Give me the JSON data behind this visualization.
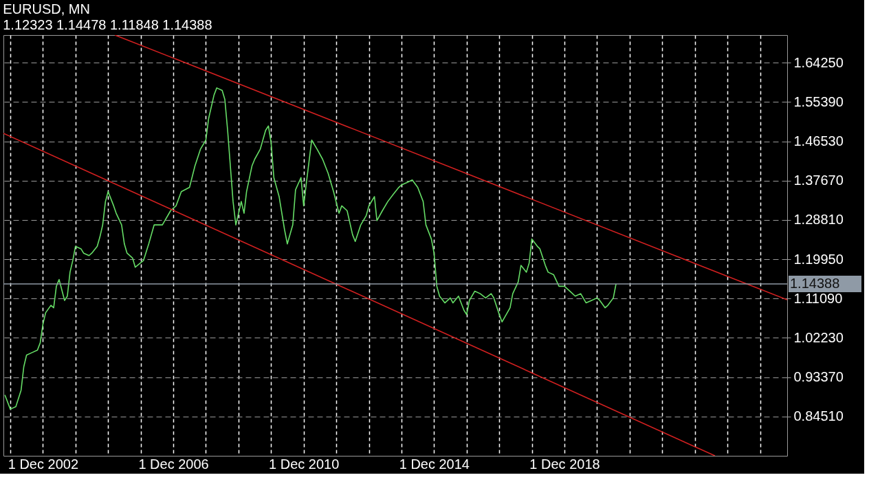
{
  "chart_data": {
    "type": "line",
    "title": "EURUSD, MN",
    "subtitle": "1.12323 1.14478 1.11848 1.14388",
    "xlim": [
      "2001-09-15",
      "2025-10-01"
    ],
    "ylim": [
      0.7565,
      1.7048
    ],
    "xticks": [
      {
        "value": "2001-12-01",
        "label": null
      },
      {
        "value": "2002-12-01",
        "label": "1 Dec 2002"
      },
      {
        "value": "2003-12-01",
        "label": null
      },
      {
        "value": "2004-12-01",
        "label": null
      },
      {
        "value": "2005-12-01",
        "label": null
      },
      {
        "value": "2006-12-01",
        "label": "1 Dec 2006"
      },
      {
        "value": "2007-12-01",
        "label": null
      },
      {
        "value": "2008-12-01",
        "label": null
      },
      {
        "value": "2009-12-01",
        "label": null
      },
      {
        "value": "2010-12-01",
        "label": "1 Dec 2010"
      },
      {
        "value": "2011-12-01",
        "label": null
      },
      {
        "value": "2012-12-01",
        "label": null
      },
      {
        "value": "2013-12-01",
        "label": null
      },
      {
        "value": "2014-12-01",
        "label": "1 Dec 2014"
      },
      {
        "value": "2015-12-01",
        "label": null
      },
      {
        "value": "2016-12-01",
        "label": null
      },
      {
        "value": "2017-12-01",
        "label": null
      },
      {
        "value": "2018-12-01",
        "label": "1 Dec 2018"
      },
      {
        "value": "2019-12-01",
        "label": null
      },
      {
        "value": "2020-12-01",
        "label": null
      },
      {
        "value": "2021-12-01",
        "label": null
      },
      {
        "value": "2022-12-01",
        "label": null
      },
      {
        "value": "2023-12-01",
        "label": null
      },
      {
        "value": "2024-12-01",
        "label": null
      }
    ],
    "yticks": [
      {
        "value": 0.8451,
        "label": "0.84510"
      },
      {
        "value": 0.9337,
        "label": "0.93370"
      },
      {
        "value": 1.0223,
        "label": "1.02230"
      },
      {
        "value": 1.1109,
        "label": "1.11090"
      },
      {
        "value": 1.1995,
        "label": "1.19950"
      },
      {
        "value": 1.2881,
        "label": "1.28810"
      },
      {
        "value": 1.3767,
        "label": "1.37670"
      },
      {
        "value": 1.4653,
        "label": "1.46530"
      },
      {
        "value": 1.5539,
        "label": "1.55390"
      },
      {
        "value": 1.6425,
        "label": "1.64250"
      }
    ],
    "grid": true,
    "ref_lines": [
      {
        "axis": "y",
        "value": 1.14388,
        "label": "1.14388",
        "color": "#8f9aa6"
      }
    ],
    "series": [
      {
        "color": "#66dd66",
        "x": [
          "2001-10",
          "2001-12",
          "2002-02",
          "2002-04",
          "2002-05",
          "2002-06",
          "2002-08",
          "2002-10",
          "2002-11",
          "2002-12",
          "2003-01",
          "2003-03",
          "2003-04",
          "2003-05",
          "2003-06",
          "2003-08",
          "2003-09",
          "2003-10",
          "2003-11",
          "2003-12",
          "2004-02",
          "2004-03",
          "2004-05",
          "2004-06",
          "2004-08",
          "2004-09",
          "2004-10",
          "2004-11",
          "2004-12",
          "2005-02",
          "2005-03",
          "2005-05",
          "2005-06",
          "2005-07",
          "2005-09",
          "2005-10",
          "2006-01",
          "2006-03",
          "2006-05",
          "2006-08",
          "2006-11",
          "2007-01",
          "2007-03",
          "2007-06",
          "2007-08",
          "2007-10",
          "2007-12",
          "2008-01",
          "2008-03",
          "2008-04",
          "2008-06",
          "2008-07",
          "2008-08",
          "2008-10",
          "2008-11",
          "2009-01",
          "2009-02",
          "2009-03",
          "2009-05",
          "2009-06",
          "2009-08",
          "2009-10",
          "2009-11",
          "2009-12",
          "2010-01",
          "2010-03",
          "2010-05",
          "2010-06",
          "2010-08",
          "2010-09",
          "2010-11",
          "2010-12",
          "2011-01",
          "2011-03",
          "2011-05",
          "2011-07",
          "2011-09",
          "2011-11",
          "2012-01",
          "2012-02",
          "2012-04",
          "2012-06",
          "2012-07",
          "2012-09",
          "2012-11",
          "2012-12",
          "2013-02",
          "2013-03",
          "2013-05",
          "2013-07",
          "2013-09",
          "2013-11",
          "2013-12",
          "2014-02",
          "2014-04",
          "2014-06",
          "2014-08",
          "2014-09",
          "2014-11",
          "2014-12",
          "2015-01",
          "2015-02",
          "2015-04",
          "2015-06",
          "2015-07",
          "2015-09",
          "2015-11",
          "2015-12",
          "2016-01",
          "2016-03",
          "2016-05",
          "2016-07",
          "2016-09",
          "2016-10",
          "2016-12",
          "2017-01",
          "2017-02",
          "2017-04",
          "2017-05",
          "2017-07",
          "2017-08",
          "2017-10",
          "2017-11",
          "2017-12",
          "2018-02",
          "2018-03",
          "2018-05",
          "2018-06",
          "2018-08",
          "2018-10",
          "2018-12",
          "2019-02",
          "2019-04",
          "2019-06",
          "2019-08",
          "2019-10",
          "2019-12",
          "2020-01",
          "2020-03",
          "2020-04",
          "2020-06",
          "2020-07"
        ],
        "values": [
          0.8935,
          0.8617,
          0.8672,
          0.9046,
          0.9572,
          0.9835,
          0.9891,
          0.9946,
          1.0112,
          1.0527,
          1.079,
          1.0957,
          1.0901,
          1.1386,
          1.1538,
          1.1067,
          1.1164,
          1.1704,
          1.1967,
          1.2286,
          1.223,
          1.2133,
          1.2078,
          1.2133,
          1.2286,
          1.2507,
          1.277,
          1.3296,
          1.3518,
          1.3199,
          1.3033,
          1.277,
          1.2341,
          1.2133,
          1.2023,
          1.1815,
          1.1967,
          1.2341,
          1.277,
          1.277,
          1.3089,
          1.3199,
          1.3518,
          1.3615,
          1.4099,
          1.4473,
          1.4681,
          1.5165,
          1.5691,
          1.5857,
          1.5802,
          1.5594,
          1.4902,
          1.3296,
          1.277,
          1.3296,
          1.3033,
          1.3518,
          1.4099,
          1.4251,
          1.4473,
          1.4902,
          1.4999,
          1.4625,
          1.3836,
          1.3407,
          1.2659,
          1.2341,
          1.277,
          1.3559,
          1.3836,
          1.3199,
          1.3725,
          1.4681,
          1.4473,
          1.4251,
          1.3933,
          1.3518,
          1.3033,
          1.3199,
          1.3089,
          1.2549,
          1.2396,
          1.277,
          1.2978,
          1.3199,
          1.3407,
          1.2867,
          1.3089,
          1.3296,
          1.3462,
          1.3615,
          1.367,
          1.3725,
          1.3781,
          1.3615,
          1.3296,
          1.277,
          1.2452,
          1.2133,
          1.1386,
          1.1164,
          1.1012,
          1.1123,
          1.1012,
          1.1164,
          1.0846,
          1.0749,
          1.1067,
          1.1275,
          1.122,
          1.1123,
          1.122,
          1.1123,
          1.0749,
          1.0583,
          1.0694,
          1.0901,
          1.122,
          1.1483,
          1.1856,
          1.1704,
          1.1912,
          1.2452,
          1.2286,
          1.223,
          1.1856,
          1.1704,
          1.1649,
          1.1386,
          1.1386,
          1.1275,
          1.1164,
          1.122,
          1.1012,
          1.1067,
          1.1123,
          1.1067,
          1.0901,
          1.0957,
          1.1123,
          1.1439
        ]
      },
      {
        "type": "line",
        "color": "#d42020",
        "x": [
          "2005-02-15",
          "2025-10-01"
        ],
        "values": [
          1.7048,
          1.1081
        ]
      },
      {
        "type": "line",
        "color": "#d42020",
        "x": [
          "2001-09-15",
          "2023-07-15"
        ],
        "values": [
          1.4833,
          0.7565
        ]
      }
    ]
  }
}
